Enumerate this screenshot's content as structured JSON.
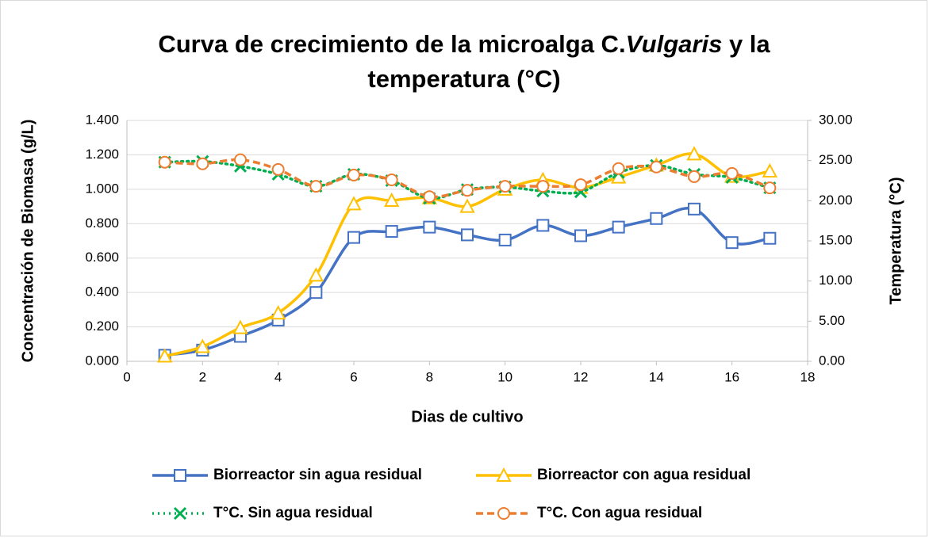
{
  "chart_data": {
    "type": "line",
    "title": [
      [
        {
          "text": "Curva de crecimiento de la microalga C."
        },
        {
          "text": "Vulgaris",
          "italic": true
        },
        {
          "text": " y la"
        }
      ],
      [
        {
          "text": "temperatura (°C)"
        }
      ]
    ],
    "x_label": "Dias de cultivo",
    "y_label": "Concentración de Biomasa (g/L)",
    "y2_label": "Temperatura (°C)",
    "x": [
      1,
      2,
      3,
      4,
      5,
      6,
      7,
      8,
      9,
      10,
      11,
      12,
      13,
      14,
      15,
      16,
      17
    ],
    "xlim": [
      0,
      18
    ],
    "xticks": [
      0,
      2,
      4,
      6,
      8,
      10,
      12,
      14,
      16,
      18
    ],
    "ylim": [
      0,
      1.4
    ],
    "yticks": [
      {
        "value": 0,
        "label": "0.000"
      },
      {
        "value": 0.2,
        "label": "0.200"
      },
      {
        "value": 0.4,
        "label": "0.400"
      },
      {
        "value": 0.6,
        "label": "0.600"
      },
      {
        "value": 0.8,
        "label": "0.800"
      },
      {
        "value": 1.0,
        "label": "1.000"
      },
      {
        "value": 1.2,
        "label": "1.200"
      },
      {
        "value": 1.4,
        "label": "1.400"
      }
    ],
    "y2lim": [
      0,
      30
    ],
    "y2ticks": [
      {
        "value": 0,
        "label": "0.00"
      },
      {
        "value": 5,
        "label": "5.00"
      },
      {
        "value": 10,
        "label": "10.00"
      },
      {
        "value": 15,
        "label": "15.00"
      },
      {
        "value": 20,
        "label": "20.00"
      },
      {
        "value": 25,
        "label": "25.00"
      },
      {
        "value": 30,
        "label": "30.00"
      }
    ],
    "grid": true,
    "legend": "bottom",
    "series": [
      {
        "name": "Biorreactor sin agua residual",
        "color": "#4472c4",
        "marker": "square",
        "dash": "solid",
        "smooth": true,
        "values": [
          0.035,
          0.065,
          0.145,
          0.24,
          0.4,
          0.72,
          0.755,
          0.78,
          0.735,
          0.705,
          0.79,
          0.73,
          0.78,
          0.83,
          0.885,
          0.69,
          0.715
        ]
      },
      {
        "name": "Biorreactor con agua residual",
        "color": "#ffc000",
        "marker": "triangle",
        "dash": "solid",
        "smooth": true,
        "values": [
          0.03,
          0.085,
          0.195,
          0.28,
          0.5,
          0.915,
          0.935,
          0.95,
          0.9,
          1.0,
          1.055,
          1.01,
          1.07,
          1.14,
          1.205,
          1.075,
          1.105
        ]
      },
      {
        "name": "T°C. Sin agua residual",
        "color": "#00b050",
        "marker": "x",
        "dash": "dotted",
        "smooth": true,
        "axis": "y2",
        "values": [
          24.8,
          24.9,
          24.3,
          23.3,
          21.8,
          23.3,
          22.5,
          20.3,
          21.4,
          21.7,
          21.2,
          21.1,
          23.5,
          24.4,
          23.3,
          22.9,
          21.6
        ]
      },
      {
        "name": "T°C. Con agua residual",
        "color": "#ed7d31",
        "marker": "circle",
        "dash": "dashed",
        "smooth": true,
        "axis": "y2",
        "values": [
          24.8,
          24.6,
          25.1,
          23.9,
          21.8,
          23.2,
          22.6,
          20.5,
          21.3,
          21.8,
          21.8,
          22.0,
          24.0,
          24.2,
          23.0,
          23.4,
          21.6
        ]
      }
    ]
  }
}
